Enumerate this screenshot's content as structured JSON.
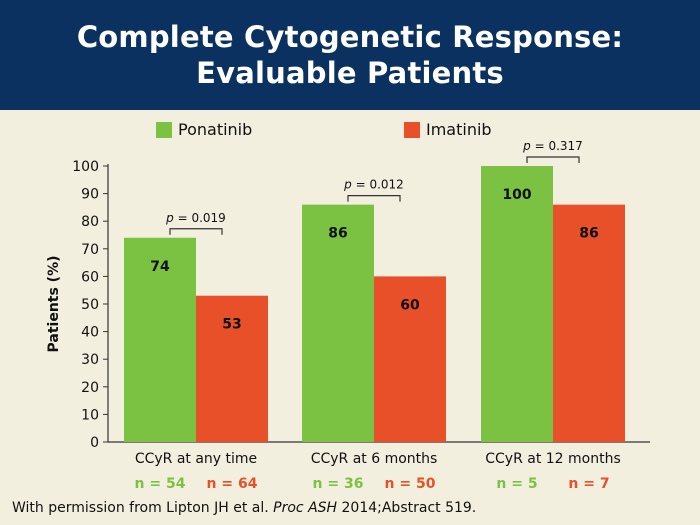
{
  "slide": {
    "title_line1": "Complete Cytogenetic Response:",
    "title_line2": "Evaluable Patients",
    "footer_prefix": "With permission from Lipton JH et al. ",
    "footer_journal": "Proc ASH",
    "footer_suffix": " 2014;Abstract 519."
  },
  "colors": {
    "header_bg": "#0b3160",
    "ponatinib": "#7cc242",
    "imatinib": "#e8502a",
    "background": "#f3efdf"
  },
  "chart_data": {
    "type": "bar",
    "ylabel": "Patients (%)",
    "ylim": [
      0,
      100
    ],
    "yticks": [
      0,
      10,
      20,
      30,
      40,
      50,
      60,
      70,
      80,
      90,
      100
    ],
    "grid": false,
    "legend_position": "top",
    "categories": [
      "CCyR at any time",
      "CCyR at 6 months",
      "CCyR at 12 months"
    ],
    "series": [
      {
        "name": "Ponatinib",
        "values": [
          74,
          86,
          100
        ],
        "n_labels": [
          "n = 54",
          "n = 36",
          "n = 5"
        ]
      },
      {
        "name": "Imatinib",
        "values": [
          53,
          60,
          86
        ],
        "n_labels": [
          "n = 64",
          "n = 50",
          "n = 7"
        ]
      }
    ],
    "p_values": [
      "0.019",
      "0.012",
      "0.317"
    ],
    "p_prefix": "p",
    "p_equals": " = "
  }
}
